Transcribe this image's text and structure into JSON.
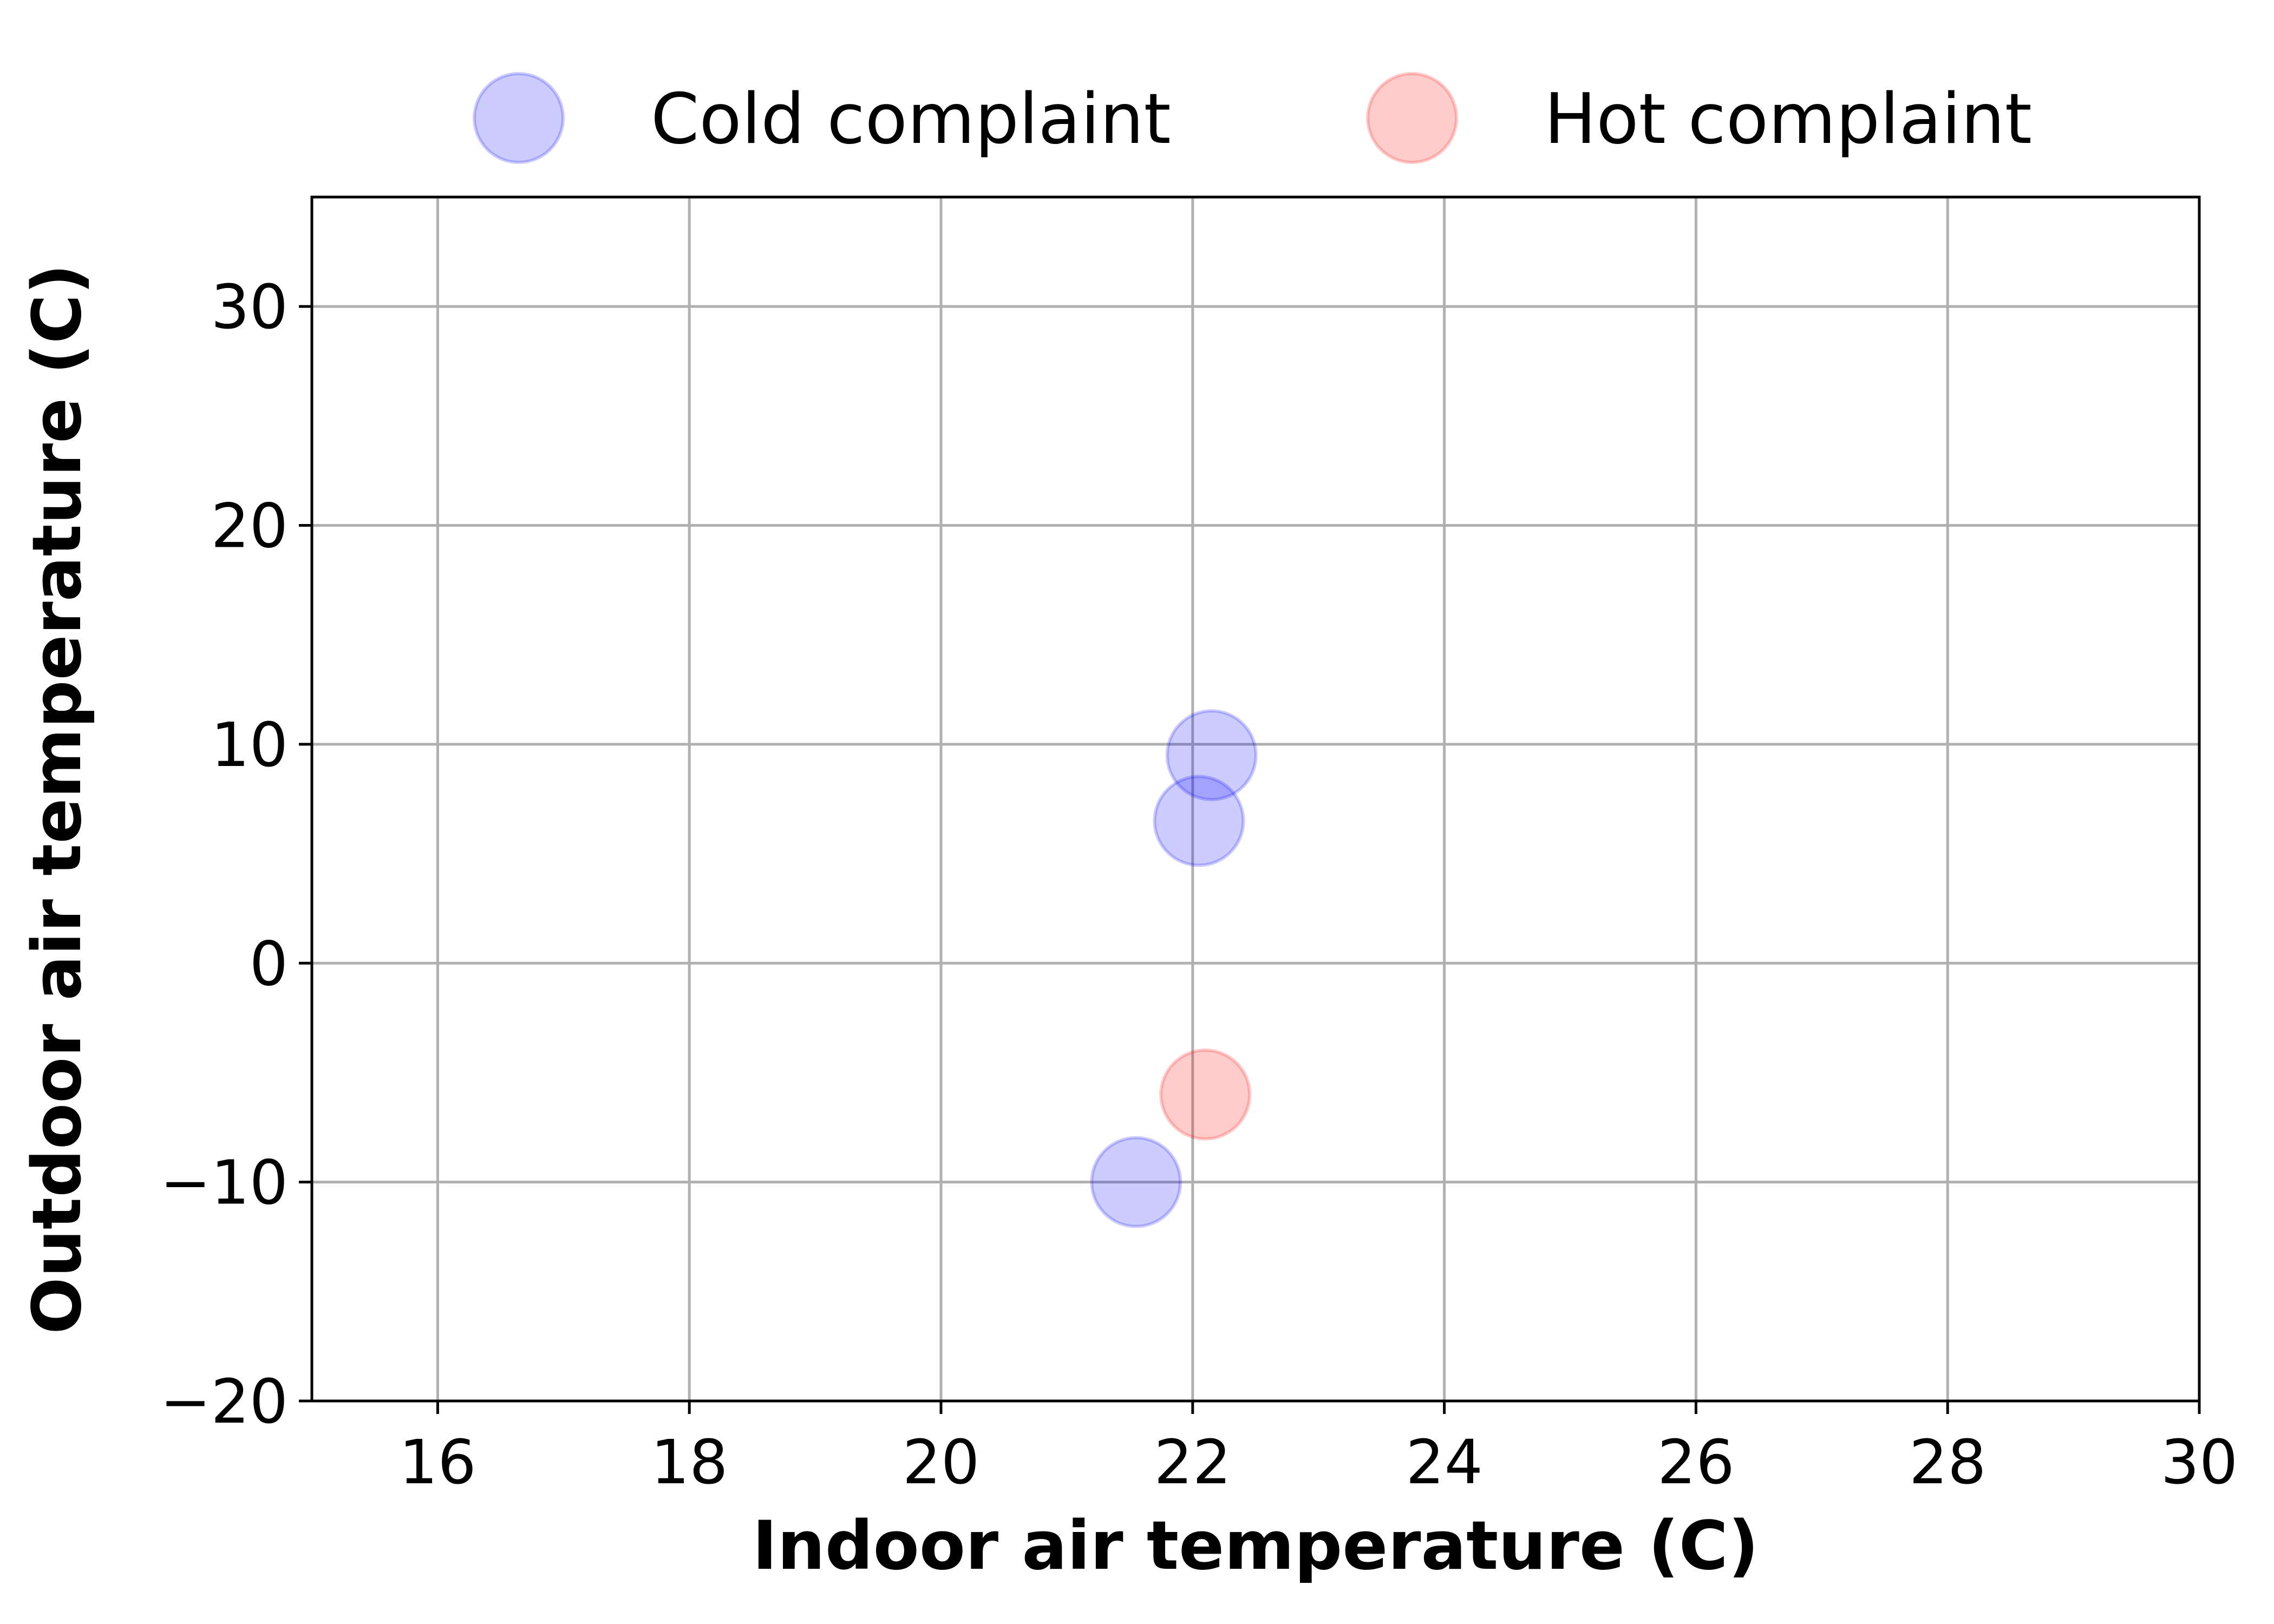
{
  "chart_data": {
    "type": "scatter",
    "title": "",
    "xlabel": "Indoor air temperature (C)",
    "ylabel": "Outdoor air temperature (C)",
    "xlim": [
      15,
      30
    ],
    "ylim": [
      -20,
      35
    ],
    "x_ticks": [
      16,
      18,
      20,
      22,
      24,
      26,
      28,
      30
    ],
    "y_ticks": [
      -20,
      -10,
      0,
      10,
      20,
      30
    ],
    "x_tick_labels": [
      "16",
      "18",
      "20",
      "22",
      "24",
      "26",
      "28",
      "30"
    ],
    "y_tick_labels": [
      "−20",
      "−10",
      "0",
      "10",
      "20",
      "30"
    ],
    "grid": true,
    "legend_position": "top-center",
    "series": [
      {
        "name": "Cold complaint",
        "color": "#0000ff",
        "points": [
          {
            "x": 22.15,
            "y": 9.5
          },
          {
            "x": 22.05,
            "y": 6.5
          },
          {
            "x": 21.55,
            "y": -10.0
          }
        ]
      },
      {
        "name": "Hot complaint",
        "color": "#ff0000",
        "points": [
          {
            "x": 22.1,
            "y": -6.0
          }
        ]
      }
    ]
  }
}
